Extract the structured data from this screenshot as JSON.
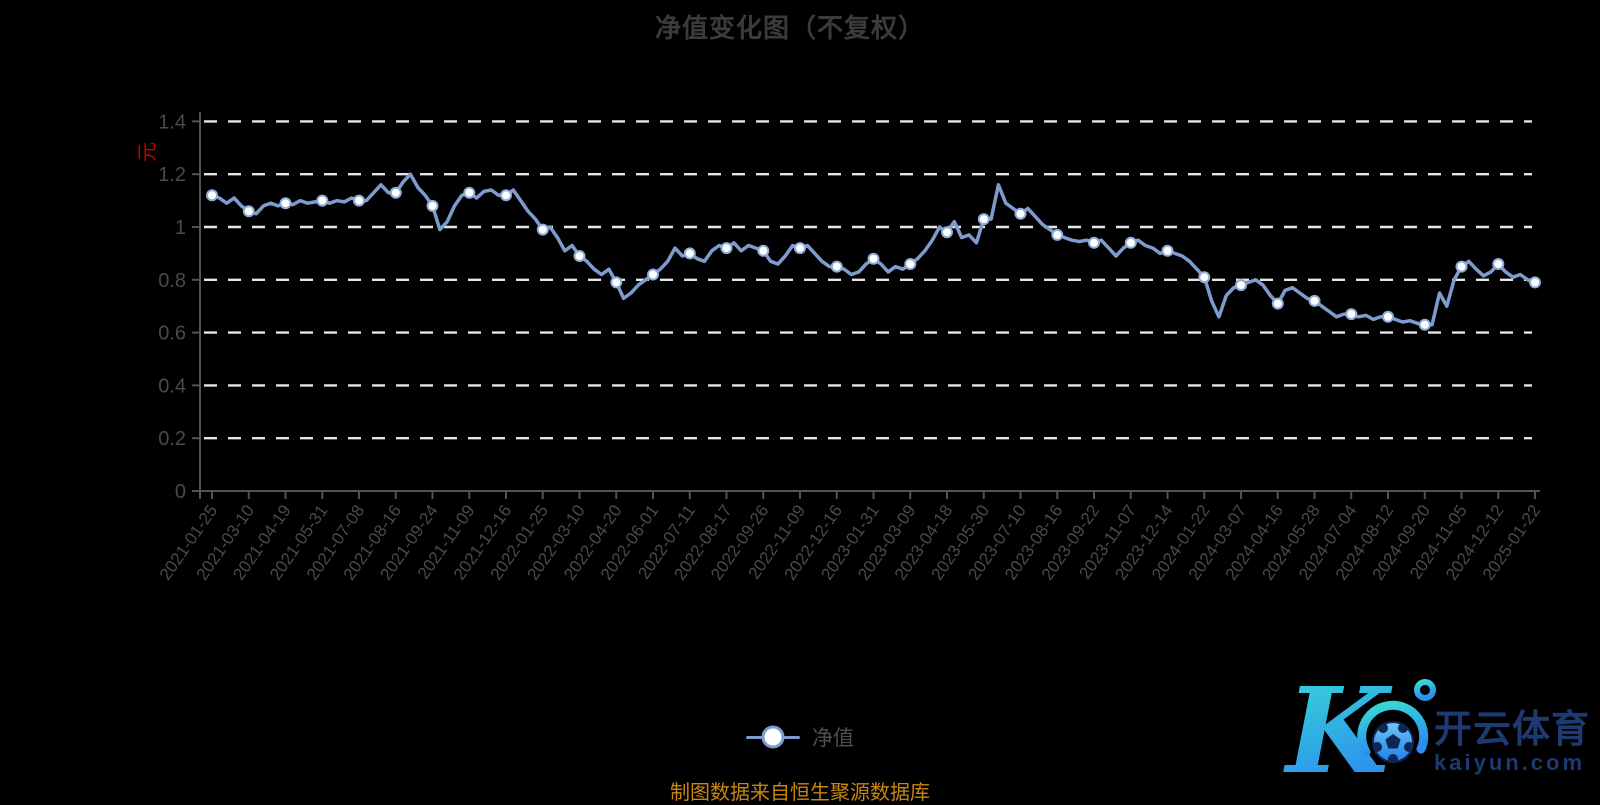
{
  "header": {
    "title": "净值变化图（不复权）"
  },
  "legend": {
    "label": "净值"
  },
  "footer": {
    "note": "制图数据来自恒生聚源数据库"
  },
  "logo": {
    "brand": "开云体育",
    "domain": "kaiyun.com",
    "mark": "kaiyun-k-soccer-ball"
  },
  "colors": {
    "background": "#000000",
    "title_text": "#3b3b3b",
    "axis_line": "#525252",
    "axis_label": "#4a4a4a",
    "grid_line": "#e6e6e6",
    "series_line": "#7d9ccd",
    "marker_fill": "#ffffff",
    "marker_stroke": "#8fadd9",
    "unit_label_red": "#c40000",
    "footer_gold": "#c8860e",
    "brand_navy": "#1d3a73",
    "brand_cyan": "#38dcd2",
    "brand_blue": "#2b8ef0"
  },
  "chart_data": {
    "type": "line",
    "title": "净值变化图（不复权）",
    "series_name": "净值",
    "y_unit": "元",
    "ylim": [
      0,
      1.4
    ],
    "y_tick_labels": [
      "0",
      "0.2",
      "0.4",
      "0.6",
      "0.8",
      "1",
      "1.2",
      "1.4"
    ],
    "grid": "horizontal-dashed",
    "legend_position": "bottom-center",
    "x_labels": [
      "2021-01-25",
      "2021-03-10",
      "2021-04-19",
      "2021-05-31",
      "2021-07-08",
      "2021-08-16",
      "2021-09-24",
      "2021-11-09",
      "2021-12-16",
      "2022-01-25",
      "2022-03-10",
      "2022-04-20",
      "2022-06-01",
      "2022-07-11",
      "2022-08-17",
      "2022-09-26",
      "2022-11-09",
      "2022-12-16",
      "2023-01-31",
      "2023-03-09",
      "2023-04-18",
      "2023-05-30",
      "2023-07-10",
      "2023-08-16",
      "2023-09-22",
      "2023-11-07",
      "2023-12-14",
      "2024-01-22",
      "2024-03-07",
      "2024-04-16",
      "2024-05-28",
      "2024-07-04",
      "2024-08-12",
      "2024-09-20",
      "2024-11-05",
      "2024-12-12",
      "2025-01-22"
    ],
    "marker_every": 5,
    "values": [
      1.12,
      1.11,
      1.09,
      1.11,
      1.08,
      1.06,
      1.05,
      1.08,
      1.09,
      1.08,
      1.09,
      1.085,
      1.1,
      1.09,
      1.095,
      1.1,
      1.09,
      1.1,
      1.095,
      1.11,
      1.1,
      1.1,
      1.13,
      1.16,
      1.13,
      1.13,
      1.17,
      1.2,
      1.15,
      1.12,
      1.08,
      0.99,
      1.02,
      1.08,
      1.12,
      1.13,
      1.11,
      1.135,
      1.14,
      1.12,
      1.12,
      1.14,
      1.1,
      1.06,
      1.03,
      0.99,
      1.0,
      0.96,
      0.91,
      0.93,
      0.89,
      0.87,
      0.84,
      0.82,
      0.84,
      0.79,
      0.73,
      0.75,
      0.78,
      0.8,
      0.82,
      0.84,
      0.87,
      0.92,
      0.89,
      0.9,
      0.88,
      0.87,
      0.91,
      0.93,
      0.92,
      0.94,
      0.91,
      0.93,
      0.92,
      0.91,
      0.87,
      0.86,
      0.89,
      0.93,
      0.92,
      0.93,
      0.9,
      0.87,
      0.85,
      0.85,
      0.84,
      0.82,
      0.83,
      0.86,
      0.88,
      0.86,
      0.83,
      0.85,
      0.84,
      0.86,
      0.88,
      0.91,
      0.95,
      1.0,
      0.98,
      1.02,
      0.96,
      0.97,
      0.94,
      1.03,
      1.03,
      1.16,
      1.09,
      1.07,
      1.05,
      1.07,
      1.04,
      1.01,
      0.99,
      0.97,
      0.96,
      0.95,
      0.945,
      0.95,
      0.94,
      0.95,
      0.92,
      0.89,
      0.92,
      0.94,
      0.95,
      0.93,
      0.92,
      0.9,
      0.91,
      0.9,
      0.89,
      0.87,
      0.84,
      0.81,
      0.72,
      0.66,
      0.74,
      0.77,
      0.78,
      0.79,
      0.8,
      0.78,
      0.74,
      0.71,
      0.76,
      0.77,
      0.75,
      0.73,
      0.72,
      0.7,
      0.68,
      0.66,
      0.67,
      0.67,
      0.66,
      0.665,
      0.65,
      0.66,
      0.66,
      0.65,
      0.64,
      0.645,
      0.635,
      0.63,
      0.63,
      0.75,
      0.7,
      0.8,
      0.85,
      0.87,
      0.84,
      0.815,
      0.83,
      0.86,
      0.83,
      0.81,
      0.82,
      0.8,
      0.79
    ]
  }
}
